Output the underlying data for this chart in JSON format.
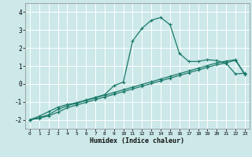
{
  "xlabel": "Humidex (Indice chaleur)",
  "bg_color": "#cce8e8",
  "grid_color": "#ffffff",
  "line_color": "#1a7a6a",
  "xlim": [
    -0.5,
    23.5
  ],
  "ylim": [
    -2.5,
    4.5
  ],
  "xticks": [
    0,
    1,
    2,
    3,
    4,
    5,
    6,
    7,
    8,
    9,
    10,
    11,
    12,
    13,
    14,
    15,
    16,
    17,
    18,
    19,
    20,
    21,
    22,
    23
  ],
  "yticks": [
    -2,
    -1,
    0,
    1,
    2,
    3,
    4
  ],
  "series1_x": [
    0,
    1,
    2,
    3,
    4,
    5,
    6,
    7,
    8,
    9,
    10,
    11,
    12,
    13,
    14,
    15,
    16,
    17,
    18,
    19,
    20,
    21,
    22,
    23
  ],
  "series1_y": [
    -2.0,
    -1.8,
    -1.55,
    -1.3,
    -1.15,
    -1.05,
    -0.9,
    -0.75,
    -0.6,
    -0.1,
    0.1,
    2.4,
    3.1,
    3.55,
    3.7,
    3.3,
    1.7,
    1.25,
    1.25,
    1.35,
    1.3,
    1.15,
    0.55,
    0.6
  ],
  "series2_x": [
    0,
    1,
    2,
    3,
    4,
    5,
    6,
    7,
    8,
    9,
    10,
    11,
    12,
    13,
    14,
    15,
    16,
    17,
    18,
    19,
    20,
    21,
    22,
    23
  ],
  "series2_y": [
    -2.0,
    -1.88,
    -1.72,
    -1.42,
    -1.22,
    -1.08,
    -0.93,
    -0.78,
    -0.63,
    -0.48,
    -0.33,
    -0.18,
    -0.03,
    0.12,
    0.27,
    0.42,
    0.57,
    0.72,
    0.87,
    1.02,
    1.17,
    1.27,
    1.35,
    0.55
  ],
  "series3_x": [
    0,
    1,
    2,
    3,
    4,
    5,
    6,
    7,
    8,
    9,
    10,
    11,
    12,
    13,
    14,
    15,
    16,
    17,
    18,
    19,
    20,
    21,
    22,
    23
  ],
  "series3_y": [
    -2.0,
    -1.92,
    -1.78,
    -1.58,
    -1.33,
    -1.18,
    -1.03,
    -0.88,
    -0.73,
    -0.58,
    -0.43,
    -0.28,
    -0.13,
    0.02,
    0.17,
    0.32,
    0.47,
    0.62,
    0.77,
    0.92,
    1.07,
    1.17,
    1.32,
    0.52
  ]
}
